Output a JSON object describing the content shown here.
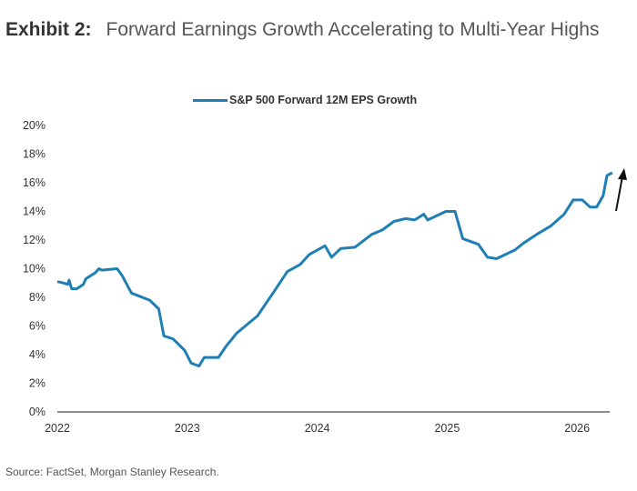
{
  "title": {
    "exhibit": "Exhibit 2:",
    "text": "Forward Earnings Growth Accelerating to Multi-Year Highs"
  },
  "source": "Source: FactSet, Morgan Stanley Research.",
  "colors": {
    "series": "#1f7fb4",
    "arrow": "#111111",
    "axis": "#666666"
  },
  "chart_data": {
    "type": "line",
    "title": "",
    "xlabel": "",
    "ylabel": "",
    "xlim": [
      2022,
      2026.3
    ],
    "ylim": [
      0,
      20
    ],
    "grid": false,
    "legend": "top-center",
    "x_ticks": [
      "2022",
      "2023",
      "2024",
      "2025",
      "2026"
    ],
    "y_ticks": [
      "0%",
      "2%",
      "4%",
      "6%",
      "8%",
      "10%",
      "12%",
      "14%",
      "16%",
      "18%",
      "20%"
    ],
    "annotations": [
      {
        "type": "arrow-up",
        "near": "end of series"
      }
    ],
    "series": [
      {
        "name": "S&P 500 Forward 12M EPS Growth",
        "x": [
          2022.0,
          2022.05,
          2022.08,
          2022.09,
          2022.11,
          2022.15,
          2022.2,
          2022.22,
          2022.29,
          2022.32,
          2022.34,
          2022.46,
          2022.5,
          2022.57,
          2022.71,
          2022.78,
          2022.82,
          2022.89,
          2022.98,
          2023.03,
          2023.09,
          2023.13,
          2023.24,
          2023.3,
          2023.38,
          2023.54,
          2023.66,
          2023.77,
          2023.87,
          2023.94,
          2024.06,
          2024.11,
          2024.18,
          2024.29,
          2024.42,
          2024.5,
          2024.59,
          2024.68,
          2024.75,
          2024.82,
          2024.85,
          2024.99,
          2025.06,
          2025.12,
          2025.24,
          2025.31,
          2025.38,
          2025.52,
          2025.59,
          2025.69,
          2025.8,
          2025.9,
          2025.97,
          2026.04,
          2026.1,
          2026.15,
          2026.2,
          2026.23,
          2026.27
        ],
        "y": [
          9.1,
          9.0,
          8.9,
          9.2,
          8.6,
          8.6,
          8.9,
          9.3,
          9.7,
          10.0,
          9.9,
          10.0,
          9.5,
          8.3,
          7.8,
          7.2,
          5.3,
          5.1,
          4.3,
          3.4,
          3.2,
          3.8,
          3.8,
          4.6,
          5.5,
          6.7,
          8.3,
          9.8,
          10.3,
          11.0,
          11.6,
          10.8,
          11.4,
          11.5,
          12.4,
          12.7,
          13.3,
          13.5,
          13.4,
          13.8,
          13.4,
          14.0,
          14.0,
          12.1,
          11.7,
          10.8,
          10.7,
          11.3,
          11.8,
          12.4,
          13.0,
          13.8,
          14.8,
          14.8,
          14.3,
          14.3,
          15.1,
          16.5,
          16.7
        ]
      }
    ]
  }
}
